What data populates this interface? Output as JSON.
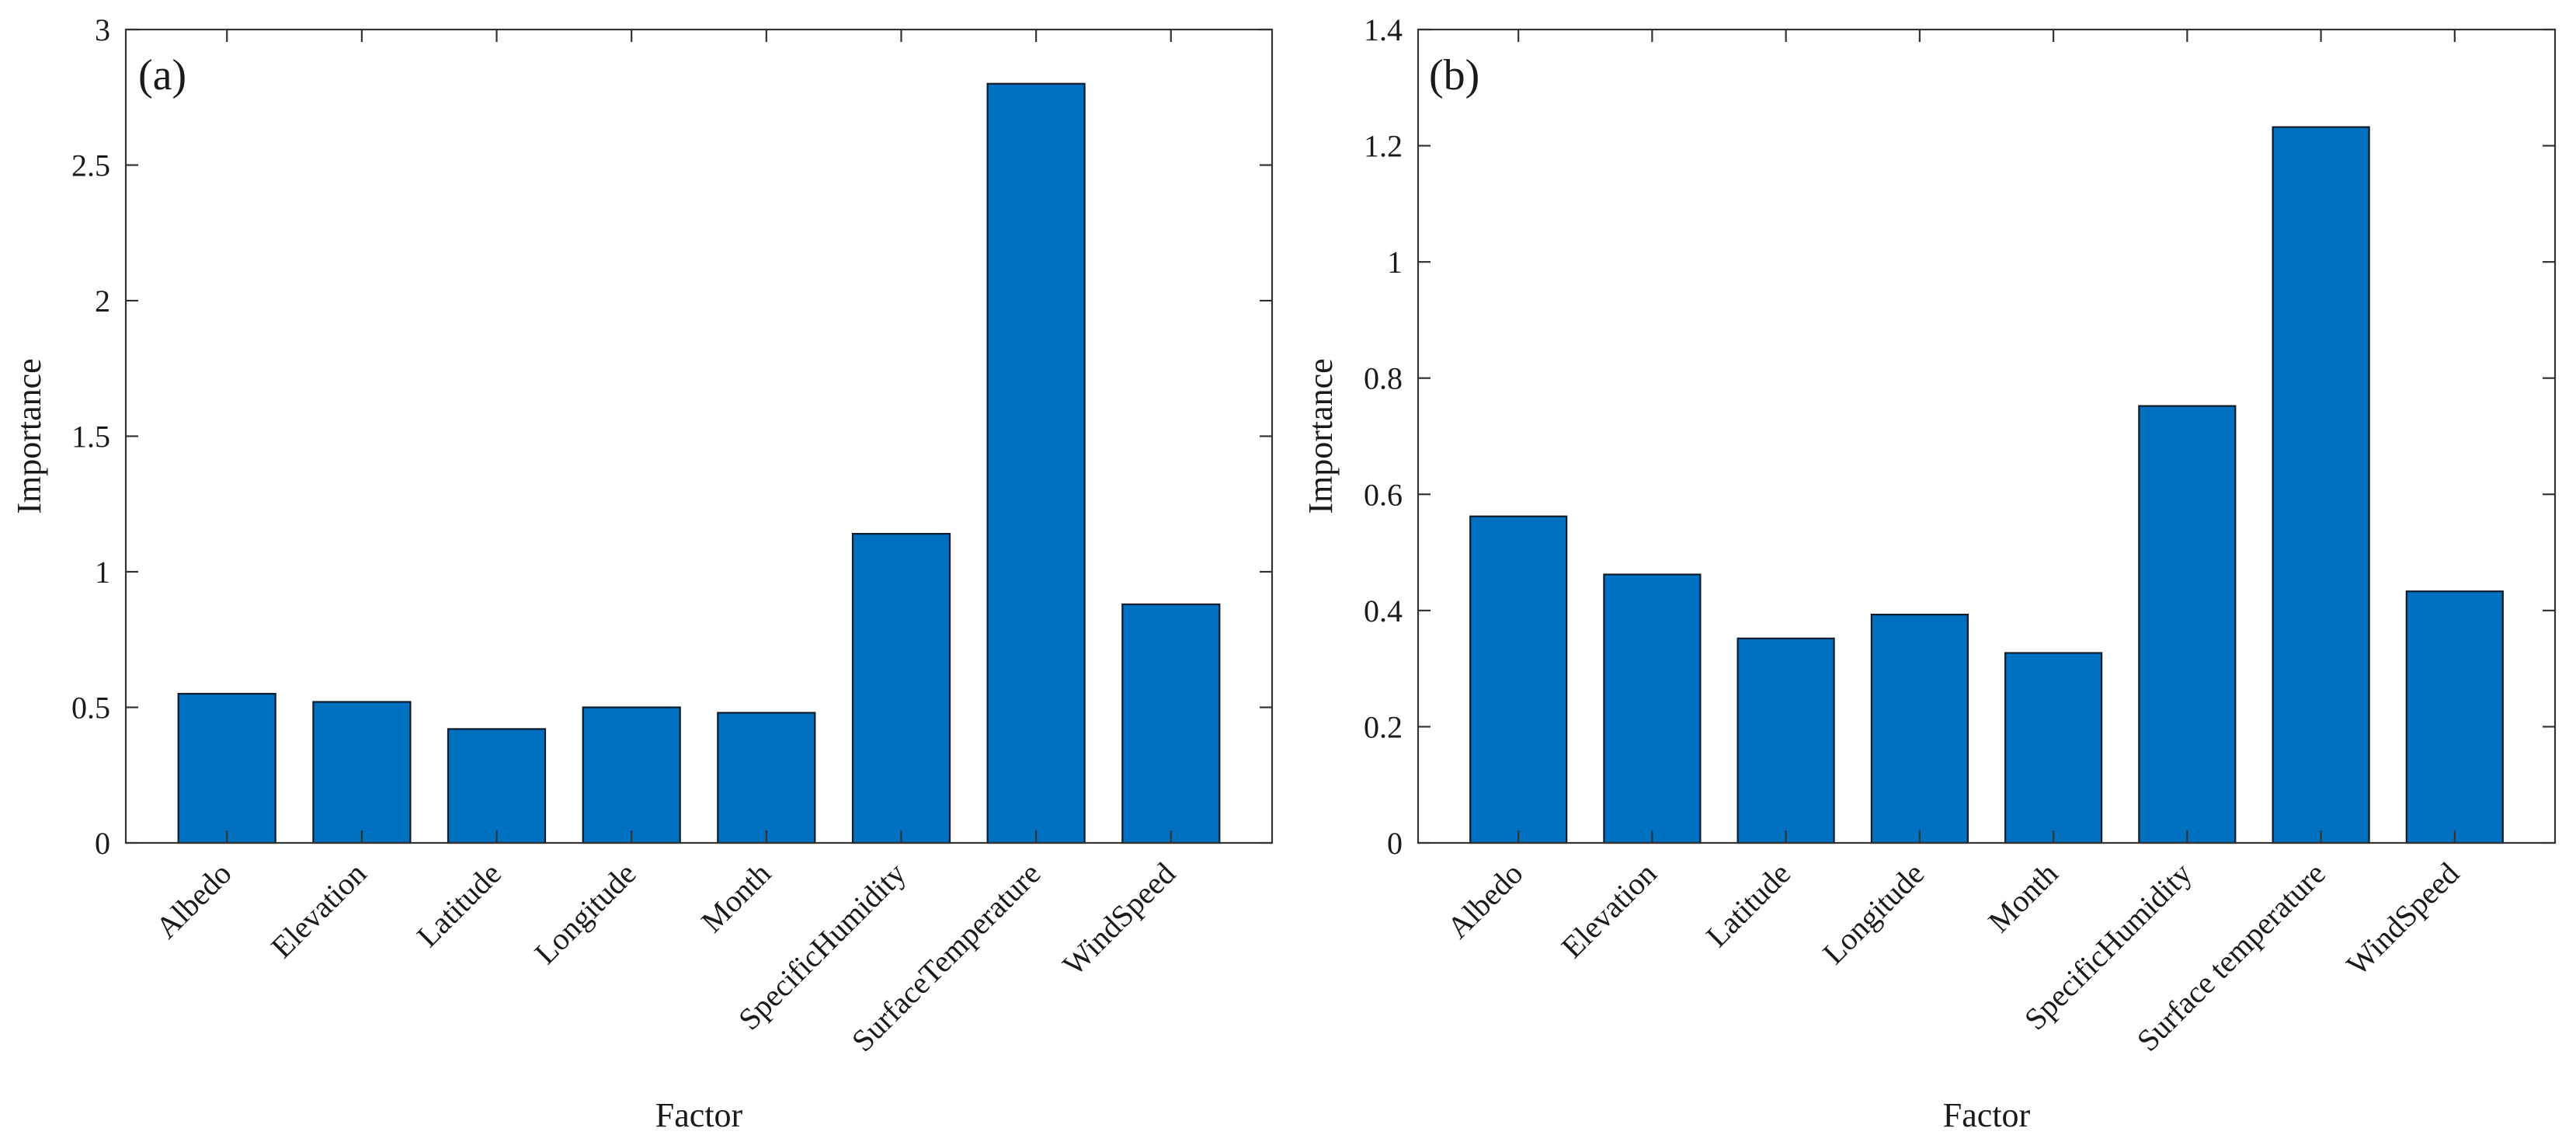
{
  "colors": {
    "bar_fill": "#0070C0",
    "bar_edge": "#0d1b2a",
    "axis": "#333333",
    "background": "#ffffff"
  },
  "chart_data": [
    {
      "type": "bar",
      "panel_label": "(a)",
      "categories": [
        "Albedo",
        "Elevation",
        "Latitude",
        "Longitude",
        "Month",
        "SpecificHumidity",
        "SurfaceTemperature",
        "WindSpeed"
      ],
      "values": [
        0.55,
        0.52,
        0.42,
        0.5,
        0.48,
        1.14,
        2.8,
        0.88
      ],
      "xlabel": "Factor",
      "ylabel": "Importance",
      "ylim": [
        0,
        3
      ],
      "yticks": [
        "0",
        "0.5",
        "1",
        "1.5",
        "2",
        "2.5",
        "3"
      ],
      "grid": false
    },
    {
      "type": "bar",
      "panel_label": "(b)",
      "categories": [
        "Albedo",
        "Elevation",
        "Latitude",
        "Longitude",
        "Month",
        "SpecificHumidity",
        "Surface temperature",
        "WindSpeed"
      ],
      "values": [
        0.562,
        0.462,
        0.352,
        0.393,
        0.327,
        0.752,
        1.232,
        0.433
      ],
      "xlabel": "Factor",
      "ylabel": "Importance",
      "ylim": [
        0,
        1.4
      ],
      "yticks": [
        "0",
        "0.2",
        "0.4",
        "0.6",
        "0.8",
        "1",
        "1.2",
        "1.4"
      ],
      "grid": false
    }
  ]
}
